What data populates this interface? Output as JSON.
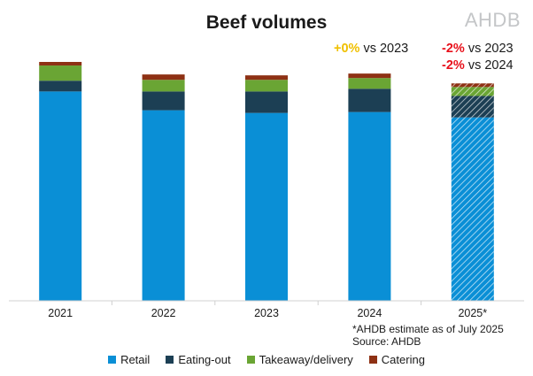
{
  "chart_data": {
    "type": "bar",
    "stacked": true,
    "title": "Beef volumes",
    "categories": [
      "2021",
      "2022",
      "2023",
      "2024",
      "2025*"
    ],
    "series": [
      {
        "name": "Retail",
        "color": "#0a8fd6",
        "values": [
          234,
          213,
          210,
          211,
          205
        ]
      },
      {
        "name": "Eating-out",
        "color": "#1c3f54",
        "values": [
          12,
          21,
          24,
          26,
          24
        ]
      },
      {
        "name": "Takeaway/delivery",
        "color": "#6aa534",
        "values": [
          17,
          13,
          13,
          12,
          10
        ]
      },
      {
        "name": "Catering",
        "color": "#8e3114",
        "values": [
          4,
          6,
          5,
          5,
          4
        ]
      }
    ],
    "estimated_categories": [
      "2025*"
    ],
    "grid": false,
    "legend_position": "bottom",
    "annotations": [
      {
        "category": "2024",
        "lines": [
          {
            "pct": "+0%",
            "text": " vs 2023",
            "color": "#f0c000"
          }
        ]
      },
      {
        "category": "2025*",
        "lines": [
          {
            "pct": "-2%",
            "text": " vs 2023",
            "color": "#e8101a"
          },
          {
            "pct": "-2%",
            "text": " vs 2024",
            "color": "#e8101a"
          }
        ]
      }
    ]
  },
  "logo_text": "AHDB",
  "annotations": {
    "a2024": {
      "pct": "+0%",
      "text": " vs 2023"
    },
    "a2025_1": {
      "pct": "-2%",
      "text": " vs 2023"
    },
    "a2025_2": {
      "pct": "-2%",
      "text": " vs 2024"
    }
  },
  "notes": {
    "estimate": "*AHDB estimate as of July 2025",
    "source": "Source: AHDB"
  }
}
